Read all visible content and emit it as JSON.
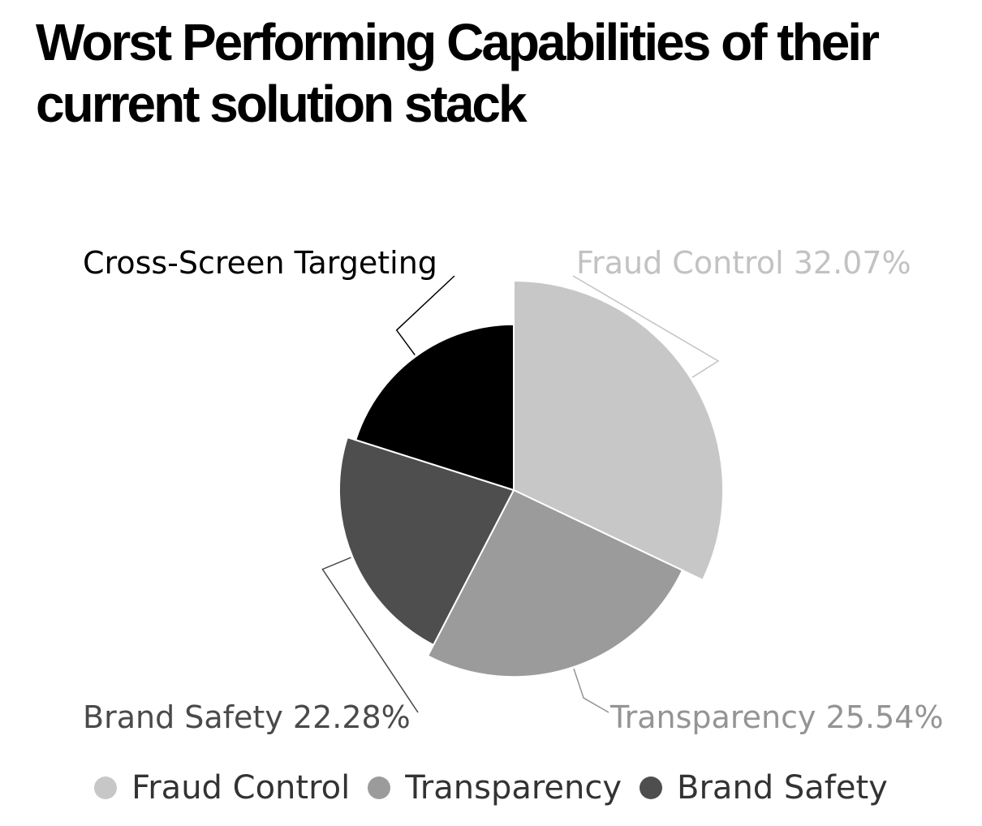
{
  "chart_data": {
    "type": "pie",
    "title": "Worst Performing Capabilities of their current solution stack",
    "categories": [
      "Fraud Control",
      "Transparency",
      "Brand Safety",
      "Cross-Screen Targeting"
    ],
    "values": [
      32.07,
      25.54,
      22.28,
      20.11
    ],
    "labels": [
      "Fraud Control 32.07%",
      "Transparency 25.54%",
      "Brand Safety 22.28%",
      "Cross-Screen Targeting"
    ],
    "colors": [
      "#c8c7c8",
      "#9b9b9b",
      "#4e4e4e",
      "#000000"
    ],
    "label_colors": [
      "#c2c2c2",
      "#949494",
      "#4a4a4a",
      "#000000"
    ],
    "legend": {
      "position": "bottom",
      "entries": [
        "Fraud Control",
        "Transparency",
        "Brand Safety"
      ]
    }
  }
}
